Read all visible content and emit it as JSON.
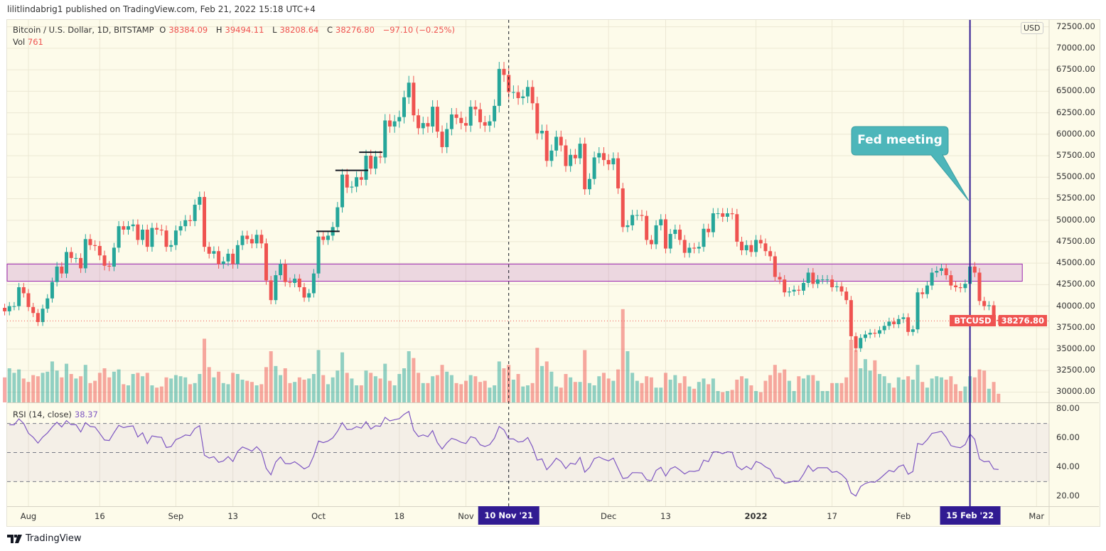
{
  "published": "lilitlindabrig1 published on TradingView.com, Feb 21, 2022 15:18 UTC+4",
  "legend": {
    "symbol": "Bitcoin / U.S. Dollar, 1D, BITSTAMP",
    "o_label": "O",
    "o": "38384.09",
    "h_label": "H",
    "h": "39494.11",
    "l_label": "L",
    "l": "38208.64",
    "c_label": "C",
    "c": "38276.80",
    "change": "−97.10 (−0.25%)",
    "vol_label": "Vol",
    "vol": "761"
  },
  "rsi_legend": {
    "label": "RSI (14, close)",
    "value": "38.37"
  },
  "currency": "USD",
  "symbol_tag": "BTCUSD",
  "price_tag": "38276.80",
  "annotation": {
    "text": "Fed meeting"
  },
  "time_badges": {
    "crosshair": "10 Nov '21",
    "event": "15 Feb '22"
  },
  "footer": {
    "brand": "TradingView"
  },
  "colors": {
    "up": "#26a69a",
    "down": "#ef5350",
    "zone": "#9c27b0",
    "rsi": "#7e57c2",
    "badge": "#311b92",
    "callout": "#4db6ba",
    "background": "#fdfbea"
  },
  "chart_data": {
    "type": "candlestick",
    "symbol": "BTCUSD",
    "interval": "1D",
    "start_date": "2021-07-27",
    "end_date": "2022-02-21",
    "close": [
      39400,
      40000,
      40000,
      42200,
      41500,
      39900,
      39200,
      38150,
      39700,
      40900,
      42800,
      44600,
      43800,
      46300,
      45600,
      45600,
      44400,
      47800,
      47100,
      47000,
      45900,
      44700,
      44600,
      46800,
      49300,
      48900,
      49300,
      49500,
      47700,
      48900,
      46900,
      49100,
      48900,
      48800,
      46900,
      47100,
      48800,
      49300,
      50000,
      49900,
      51800,
      52700,
      46900,
      46100,
      46400,
      44900,
      45200,
      46100,
      44900,
      47100,
      48200,
      47800,
      47300,
      48300,
      47300,
      43000,
      40700,
      43600,
      44900,
      42800,
      42700,
      43200,
      42200,
      41000,
      41500,
      43800,
      48100,
      47700,
      48200,
      49200,
      51500,
      55300,
      53800,
      53900,
      55000,
      54700,
      57500,
      56000,
      57400,
      57300,
      61600,
      60900,
      61500,
      62000,
      64300,
      66000,
      62200,
      60700,
      61300,
      60900,
      63200,
      60300,
      58500,
      60600,
      62300,
      61900,
      61300,
      61000,
      63200,
      62900,
      61400,
      61000,
      61500,
      63300,
      67600,
      66900,
      64900,
      64900,
      64200,
      64400,
      65500,
      63600,
      60100,
      60400,
      56900,
      58100,
      59700,
      58700,
      56300,
      57600,
      57200,
      58900,
      53600,
      54800,
      57300,
      57800,
      57000,
      56500,
      57200,
      53700,
      49200,
      49400,
      50600,
      50600,
      50500,
      47700,
      47200,
      49400,
      50100,
      46700,
      48400,
      48900,
      47700,
      46200,
      46800,
      46700,
      46900,
      49000,
      48600,
      50800,
      50800,
      50400,
      50800,
      50700,
      47500,
      46500,
      47100,
      46300,
      47700,
      47300,
      46400,
      45800,
      43400,
      43100,
      41600,
      41700,
      41900,
      41800,
      42700,
      43900,
      42600,
      43100,
      43100,
      43100,
      42200,
      42300,
      41700,
      40700,
      36500,
      35100,
      36300,
      36700,
      36900,
      36800,
      37200,
      37700,
      38200,
      37900,
      38500,
      38700,
      37000,
      37300,
      41600,
      41400,
      42400,
      43900,
      44100,
      44400,
      43600,
      42400,
      42200,
      42100,
      42600,
      44600,
      43900,
      40600,
      40000,
      40100,
      38400,
      38276.8
    ],
    "first_open": 39800,
    "volume": [
      2200,
      3000,
      2600,
      2900,
      2100,
      1800,
      2400,
      2300,
      2600,
      2700,
      3600,
      2800,
      2200,
      3400,
      2500,
      2100,
      2300,
      3300,
      1700,
      1900,
      2600,
      3000,
      2200,
      2700,
      2900,
      1600,
      1500,
      2500,
      2600,
      2300,
      2600,
      1500,
      1300,
      1400,
      2200,
      2100,
      2400,
      2300,
      2200,
      1600,
      1700,
      2500,
      5600,
      3100,
      2200,
      2700,
      1700,
      1600,
      2600,
      2500,
      2000,
      1900,
      1800,
      1500,
      1600,
      3100,
      4500,
      3200,
      2400,
      3000,
      1700,
      1800,
      2200,
      2000,
      2100,
      2500,
      4600,
      2400,
      1600,
      2200,
      2800,
      4400,
      2600,
      2100,
      1500,
      1500,
      2800,
      2600,
      2300,
      2100,
      3400,
      1900,
      1500,
      2500,
      3000,
      4500,
      3900,
      2600,
      1700,
      1700,
      2300,
      2400,
      3300,
      2700,
      2400,
      1700,
      1600,
      1900,
      2400,
      2300,
      1800,
      1900,
      1300,
      1500,
      3600,
      3000,
      3300,
      2000,
      2500,
      1400,
      1500,
      1700,
      4800,
      3200,
      3600,
      2700,
      1400,
      1300,
      2500,
      2200,
      1800,
      1800,
      4600,
      1700,
      1500,
      2300,
      2600,
      2100,
      1900,
      2900,
      8200,
      4500,
      2600,
      1900,
      1700,
      2300,
      2200,
      1300,
      1300,
      2600,
      2000,
      2400,
      1700,
      2300,
      1400,
      1200,
      1800,
      2100,
      1600,
      2100,
      1000,
      900,
      1000,
      1100,
      2000,
      2300,
      2100,
      1500,
      1000,
      900,
      1900,
      2400,
      3300,
      2600,
      2900,
      1900,
      1000,
      2300,
      2100,
      2400,
      2400,
      1900,
      1000,
      1000,
      1700,
      1700,
      1700,
      2200,
      5500,
      4600,
      3000,
      3800,
      2800,
      3700,
      2500,
      2300,
      1700,
      1300,
      2200,
      2000,
      2300,
      2000,
      3300,
      1800,
      1300,
      2100,
      2300,
      2200,
      2000,
      2300,
      1600,
      1000,
      1400,
      2300,
      2200,
      2900,
      2800,
      1200,
      1800,
      761
    ],
    "price_axis": {
      "range": [
        28800,
        73300
      ],
      "ticks": [
        "30000.00",
        "32500.00",
        "35000.00",
        "37500.00",
        "40000.00",
        "42500.00",
        "45000.00",
        "47500.00",
        "50000.00",
        "52500.00",
        "55000.00",
        "57500.00",
        "60000.00",
        "62500.00",
        "65000.00",
        "67500.00",
        "70000.00",
        "72500.00"
      ]
    },
    "rsi": {
      "period": 14,
      "range": [
        14,
        84
      ],
      "ticks": [
        "20.00",
        "40.00",
        "60.00",
        "80.00"
      ],
      "bands": [
        30,
        50,
        70
      ]
    },
    "time_ticks": [
      {
        "label": "Aug",
        "date": "2021-08-01"
      },
      {
        "label": "16",
        "date": "2021-08-16"
      },
      {
        "label": "Sep",
        "date": "2021-09-01"
      },
      {
        "label": "13",
        "date": "2021-09-13"
      },
      {
        "label": "Oct",
        "date": "2021-10-01"
      },
      {
        "label": "18",
        "date": "2021-10-18"
      },
      {
        "label": "Nov",
        "date": "2021-11-01"
      },
      {
        "label": "Dec",
        "date": "2021-12-01"
      },
      {
        "label": "13",
        "date": "2021-12-13"
      },
      {
        "label": "2022",
        "date": "2022-01-01",
        "bold": true
      },
      {
        "label": "17",
        "date": "2022-01-17"
      },
      {
        "label": "Feb",
        "date": "2022-02-01"
      },
      {
        "label": "Mar",
        "date": "2022-03-01"
      }
    ],
    "zone": {
      "low": 42900,
      "high": 44900,
      "to_date": "2022-02-26"
    },
    "level_marks": [
      {
        "price": 48700,
        "from": "2021-10-01",
        "to": "2021-10-05"
      },
      {
        "price": 55800,
        "from": "2021-10-05",
        "to": "2021-10-11"
      },
      {
        "price": 57900,
        "from": "2021-10-10",
        "to": "2021-10-14"
      }
    ],
    "crosshair_date": "2021-11-10",
    "event_date": "2022-02-15",
    "last_price": 38276.8
  }
}
